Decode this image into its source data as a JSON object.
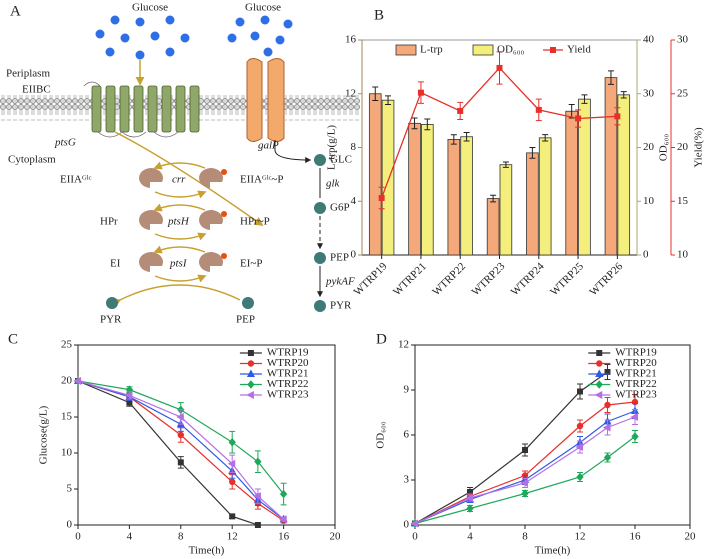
{
  "diagram": {
    "label": "A",
    "glucose_left": "Glucose",
    "glucose_right": "Glucose",
    "periplasm": "Periplasm",
    "cytoplasm": "Cytoplasm",
    "eiibc": "EIIBC",
    "ptsG": "ptsG",
    "galP": "galP",
    "GLC": "GLC",
    "glk": "glk",
    "G6P": "G6P",
    "PEP_right": "PEP",
    "pykAF": "pykAF",
    "PYR_right": "PYR",
    "eiia": "EIIAᴳˡᶜ",
    "crr": "crr",
    "eiia_p": "EIIAᴳˡᶜ~P",
    "hpr": "HPr",
    "ptsH": "ptsH",
    "hpr_p": "HPr~P",
    "ei": "EI",
    "ptsI": "ptsI",
    "ei_p": "EI~P",
    "PYR_left": "PYR",
    "PEP_left": "PEP"
  },
  "chart_data": [
    {
      "type": "bar",
      "label": "B",
      "categories": [
        "WTRP19",
        "WTRP21",
        "WTRP22",
        "WTRP23",
        "WTRP24",
        "WTRP25",
        "WTRP26"
      ],
      "series": [
        {
          "name": "L-trp",
          "color": "#f5a97a",
          "values": [
            12.0,
            9.8,
            8.6,
            4.2,
            7.6,
            10.7,
            13.2
          ],
          "errors": [
            0.5,
            0.4,
            0.35,
            0.25,
            0.4,
            0.5,
            0.5
          ]
        },
        {
          "name": "OD₆₀₀",
          "color": "#f4ef7c",
          "axis": "y2",
          "values": [
            28.8,
            24.3,
            22.0,
            16.8,
            21.8,
            29.0,
            29.8
          ],
          "errors": [
            0.8,
            1.0,
            0.8,
            0.5,
            0.6,
            0.8,
            0.6
          ]
        },
        {
          "type": "line",
          "name": "Yield",
          "color": "#e8302a",
          "axis": "y3",
          "values": [
            15.3,
            25.1,
            23.4,
            27.4,
            23.5,
            22.7,
            22.9
          ],
          "errors": [
            1.0,
            1.0,
            0.8,
            1.5,
            1.0,
            0.8,
            0.8
          ]
        }
      ],
      "ylabel": "L-trp(g/L)",
      "y2label": "OD₆₀₀",
      "y3label": "Yield(%)",
      "ylim": [
        0,
        16
      ],
      "yticks": [
        0,
        4,
        8,
        12,
        16
      ],
      "y2lim": [
        0,
        40
      ],
      "y2ticks": [
        0,
        10,
        20,
        30,
        40
      ],
      "y3lim": [
        10,
        30
      ],
      "y3ticks": [
        10,
        15,
        20,
        25,
        30
      ]
    },
    {
      "type": "line",
      "label": "C",
      "xlabel": "Time(h)",
      "ylabel": "Glucose(g/L)",
      "x": [
        0,
        4,
        8,
        12,
        14,
        16
      ],
      "xlim": [
        0,
        20
      ],
      "xticks": [
        0,
        4,
        8,
        12,
        16,
        20
      ],
      "ylim": [
        0,
        25
      ],
      "yticks": [
        0,
        5,
        10,
        15,
        20,
        25
      ],
      "series": [
        {
          "name": "WTRP19",
          "color": "#333333",
          "marker": "square",
          "values": [
            20,
            17,
            8.7,
            1.2,
            0,
            null
          ],
          "errors": [
            0,
            0.5,
            0.8,
            0.3,
            0,
            null
          ]
        },
        {
          "name": "WTRP20",
          "color": "#e8302a",
          "marker": "circle",
          "values": [
            20,
            17.8,
            12.5,
            6,
            3,
            0.6
          ],
          "errors": [
            0,
            0.5,
            1,
            1,
            0.8,
            0.3
          ]
        },
        {
          "name": "WTRP21",
          "color": "#2d5be3",
          "marker": "triangle",
          "values": [
            20,
            17.8,
            14,
            7.5,
            3.5,
            0.8
          ],
          "errors": [
            0,
            0.5,
            1,
            1,
            0.8,
            0.3
          ]
        },
        {
          "name": "WTRP22",
          "color": "#1ea85a",
          "marker": "diamond",
          "values": [
            20,
            18.8,
            16,
            11.5,
            8.8,
            4.3
          ],
          "errors": [
            0,
            0.4,
            1,
            1.5,
            1.5,
            1.5
          ]
        },
        {
          "name": "WTRP23",
          "color": "#b46ee6",
          "marker": "ltriangle",
          "values": [
            20,
            18,
            15,
            8.5,
            4,
            0.8
          ],
          "errors": [
            0,
            0.5,
            1,
            1.2,
            1,
            0.3
          ]
        }
      ]
    },
    {
      "type": "line",
      "label": "D",
      "xlabel": "Time(h)",
      "ylabel": "OD₆₀₀",
      "x": [
        0,
        4,
        8,
        12,
        14,
        16
      ],
      "xlim": [
        0,
        20
      ],
      "xticks": [
        0,
        4,
        8,
        12,
        16,
        20
      ],
      "ylim": [
        0,
        12
      ],
      "yticks": [
        0,
        3,
        6,
        9,
        12
      ],
      "series": [
        {
          "name": "WTRP19",
          "color": "#333333",
          "marker": "square",
          "values": [
            0.1,
            2.2,
            5.0,
            8.9,
            10.2,
            null
          ],
          "errors": [
            0,
            0.3,
            0.4,
            0.5,
            0.5,
            null
          ]
        },
        {
          "name": "WTRP20",
          "color": "#e8302a",
          "marker": "circle",
          "values": [
            0.1,
            1.9,
            3.3,
            6.6,
            8.0,
            8.2
          ],
          "errors": [
            0,
            0.2,
            0.3,
            0.4,
            0.5,
            0.5
          ]
        },
        {
          "name": "WTRP21",
          "color": "#2d5be3",
          "marker": "triangle",
          "values": [
            0.1,
            1.7,
            3.0,
            5.5,
            6.9,
            7.6
          ],
          "errors": [
            0,
            0.2,
            0.3,
            0.4,
            0.5,
            0.5
          ]
        },
        {
          "name": "WTRP22",
          "color": "#1ea85a",
          "marker": "diamond",
          "values": [
            0.1,
            1.1,
            2.1,
            3.2,
            4.5,
            5.9
          ],
          "errors": [
            0,
            0.2,
            0.2,
            0.3,
            0.3,
            0.4
          ]
        },
        {
          "name": "WTRP23",
          "color": "#b46ee6",
          "marker": "ltriangle",
          "values": [
            0.1,
            1.8,
            2.8,
            5.2,
            6.5,
            7.2
          ],
          "errors": [
            0,
            0.2,
            0.3,
            0.4,
            0.5,
            0.5
          ]
        }
      ]
    }
  ]
}
